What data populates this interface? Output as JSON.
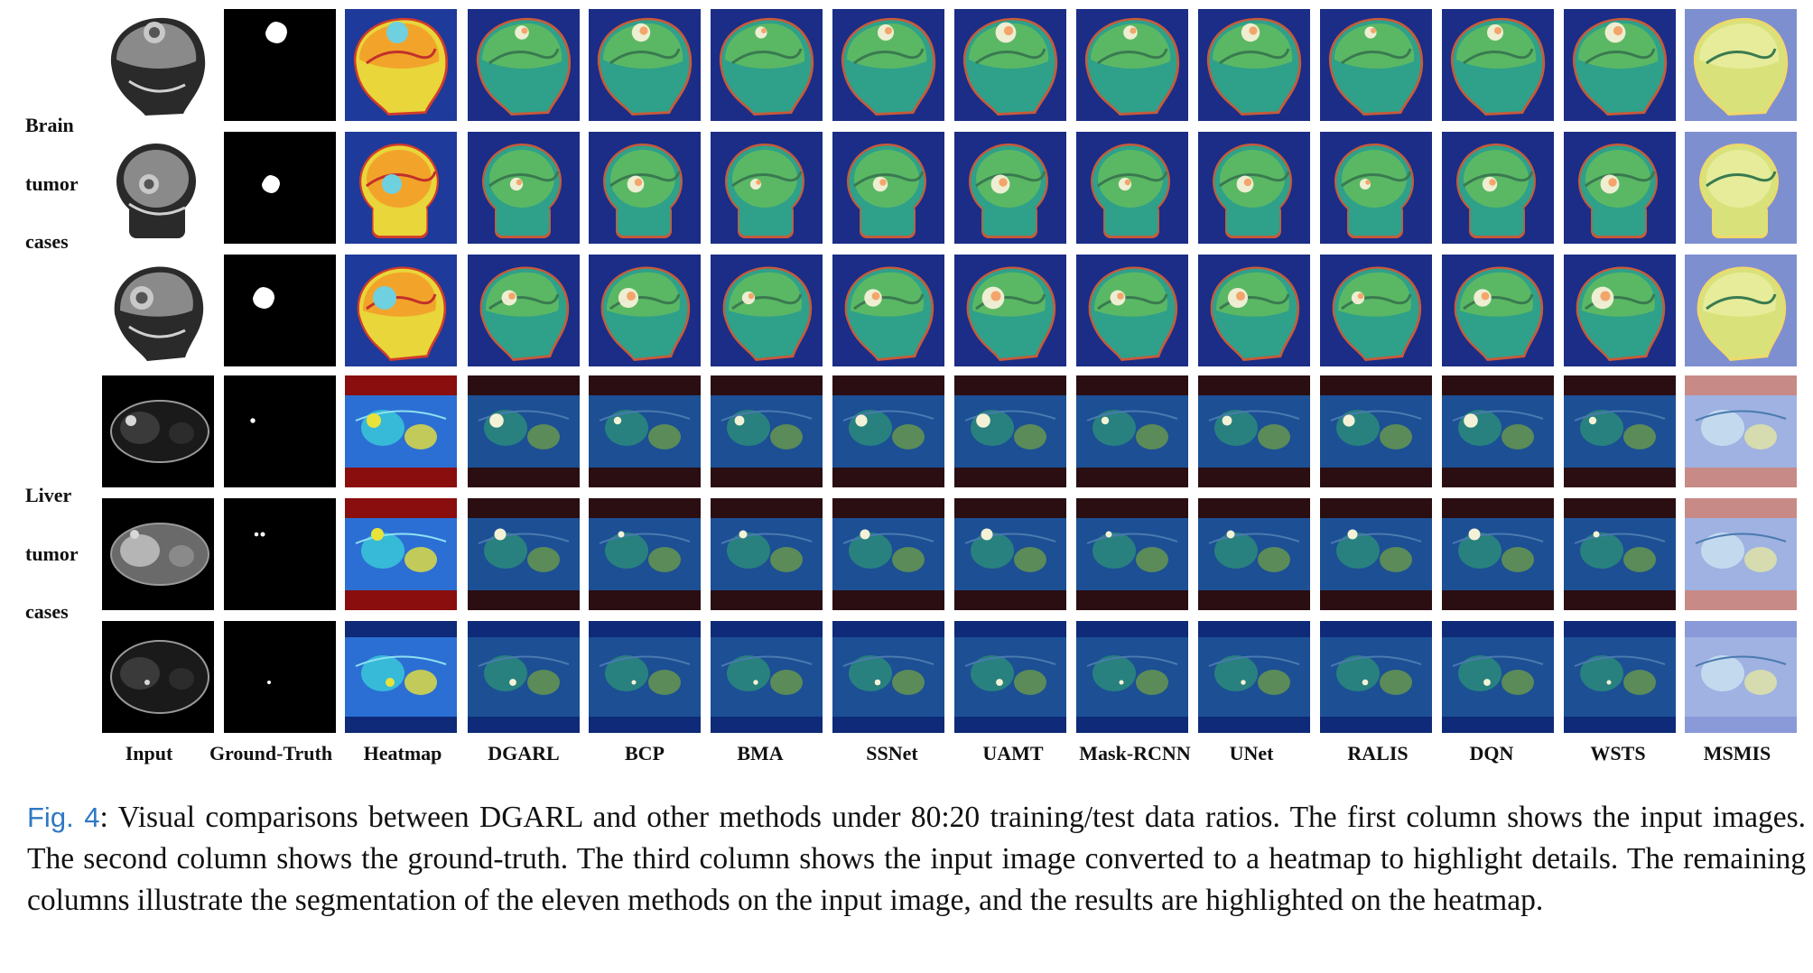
{
  "row_groups": [
    {
      "lines": [
        "Brain",
        "tumor",
        "cases"
      ]
    },
    {
      "lines": [
        "Liver",
        "tumor",
        "cases"
      ]
    }
  ],
  "columns": [
    {
      "label": "Input",
      "type": "input"
    },
    {
      "label": "Ground-Truth",
      "type": "gt"
    },
    {
      "label": "Heatmap",
      "type": "heatmap"
    },
    {
      "label": "DGARL",
      "type": "method"
    },
    {
      "label": "BCP",
      "type": "method"
    },
    {
      "label": "BMA",
      "type": "method"
    },
    {
      "label": "SSNet",
      "type": "method"
    },
    {
      "label": "UAMT",
      "type": "method"
    },
    {
      "label": "Mask-RCNN",
      "type": "method"
    },
    {
      "label": "UNet",
      "type": "method"
    },
    {
      "label": "RALIS",
      "type": "method"
    },
    {
      "label": "DQN",
      "type": "method"
    },
    {
      "label": "WSTS",
      "type": "method"
    },
    {
      "label": "MSMIS",
      "type": "faded"
    }
  ],
  "rows": [
    {
      "kind": "brain-sagittal"
    },
    {
      "kind": "brain-coronal"
    },
    {
      "kind": "brain-sagittal2"
    },
    {
      "kind": "liver1"
    },
    {
      "kind": "liver2"
    },
    {
      "kind": "liver3"
    }
  ],
  "caption": {
    "fig_label": "Fig. 4",
    "text": ": Visual comparisons between DGARL and other methods under 80:20 training/test data ratios. The first column shows the input images. The second column shows the ground-truth. The third column shows the input image converted to a heatmap to highlight details. The remaining columns illustrate the segmentation of the eleven methods on the input image, and the results are highlighted on the heatmap."
  }
}
